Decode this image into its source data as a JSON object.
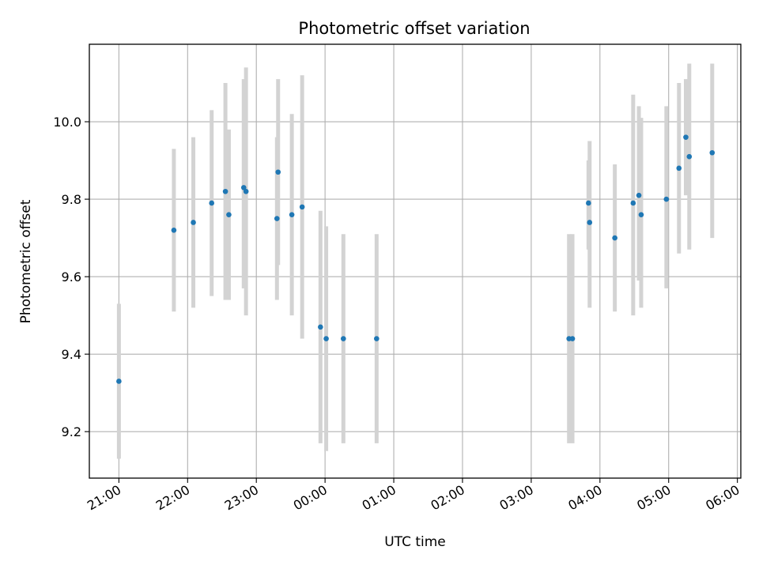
{
  "chart_data": {
    "type": "scatter",
    "title": "Photometric offset variation",
    "xlabel": "UTC time",
    "ylabel": "Photometric offset",
    "x_axis_start": "20:34",
    "x_axis_end": "06:03",
    "xlim_hours": [
      20.57,
      30.05
    ],
    "ylim": [
      9.08,
      10.2
    ],
    "x_tick_values": [
      21,
      22,
      23,
      24,
      25,
      26,
      27,
      28,
      29,
      30
    ],
    "x_tick_labels": [
      "21:00",
      "22:00",
      "23:00",
      "00:00",
      "01:00",
      "02:00",
      "03:00",
      "04:00",
      "05:00",
      "06:00"
    ],
    "y_ticks": [
      9.2,
      9.4,
      9.6,
      9.8,
      10.0
    ],
    "y_tick_labels": [
      "9.2",
      "9.4",
      "9.6",
      "9.8",
      "10.0"
    ],
    "grid": true,
    "colors": {
      "point": "#1f77b4",
      "error_bar": "#d3d3d3",
      "grid": "#b0b0b0",
      "axes": "#000000"
    },
    "points": [
      {
        "time": "21:00",
        "y": 9.33,
        "low": 9.13,
        "high": 9.53
      },
      {
        "time": "21:48",
        "y": 9.72,
        "low": 9.51,
        "high": 9.93
      },
      {
        "time": "22:05",
        "y": 9.74,
        "low": 9.52,
        "high": 9.96
      },
      {
        "time": "22:21",
        "y": 9.79,
        "low": 9.55,
        "high": 10.03
      },
      {
        "time": "22:33",
        "y": 9.82,
        "low": 9.54,
        "high": 10.1
      },
      {
        "time": "22:36",
        "y": 9.76,
        "low": 9.54,
        "high": 9.98
      },
      {
        "time": "22:49",
        "y": 9.83,
        "low": 9.57,
        "high": 10.11
      },
      {
        "time": "22:51",
        "y": 9.82,
        "low": 9.5,
        "high": 10.14
      },
      {
        "time": "23:18",
        "y": 9.75,
        "low": 9.54,
        "high": 9.96
      },
      {
        "time": "23:19",
        "y": 9.87,
        "low": 9.63,
        "high": 10.11
      },
      {
        "time": "23:31",
        "y": 9.76,
        "low": 9.5,
        "high": 10.02
      },
      {
        "time": "23:40",
        "y": 9.78,
        "low": 9.44,
        "high": 10.12
      },
      {
        "time": "23:56",
        "y": 9.47,
        "low": 9.17,
        "high": 9.77
      },
      {
        "time": "00:01",
        "y": 9.44,
        "low": 9.15,
        "high": 9.73
      },
      {
        "time": "00:16",
        "y": 9.44,
        "low": 9.17,
        "high": 9.71
      },
      {
        "time": "00:45",
        "y": 9.44,
        "low": 9.17,
        "high": 9.71
      },
      {
        "time": "03:33",
        "y": 9.44,
        "low": 9.17,
        "high": 9.71
      },
      {
        "time": "03:36",
        "y": 9.44,
        "low": 9.17,
        "high": 9.71
      },
      {
        "time": "03:50",
        "y": 9.79,
        "low": 9.67,
        "high": 9.9
      },
      {
        "time": "03:51",
        "y": 9.74,
        "low": 9.52,
        "high": 9.95
      },
      {
        "time": "04:13",
        "y": 9.7,
        "low": 9.51,
        "high": 9.89
      },
      {
        "time": "04:29",
        "y": 9.79,
        "low": 9.5,
        "high": 10.07
      },
      {
        "time": "04:34",
        "y": 9.81,
        "low": 9.59,
        "high": 10.04
      },
      {
        "time": "04:36",
        "y": 9.76,
        "low": 9.52,
        "high": 10.01
      },
      {
        "time": "04:58",
        "y": 9.8,
        "low": 9.57,
        "high": 10.04
      },
      {
        "time": "05:09",
        "y": 9.88,
        "low": 9.66,
        "high": 10.1
      },
      {
        "time": "05:15",
        "y": 9.96,
        "low": 9.81,
        "high": 10.11
      },
      {
        "time": "05:18",
        "y": 9.91,
        "low": 9.67,
        "high": 10.15
      },
      {
        "time": "05:38",
        "y": 9.92,
        "low": 9.7,
        "high": 10.15
      }
    ]
  }
}
